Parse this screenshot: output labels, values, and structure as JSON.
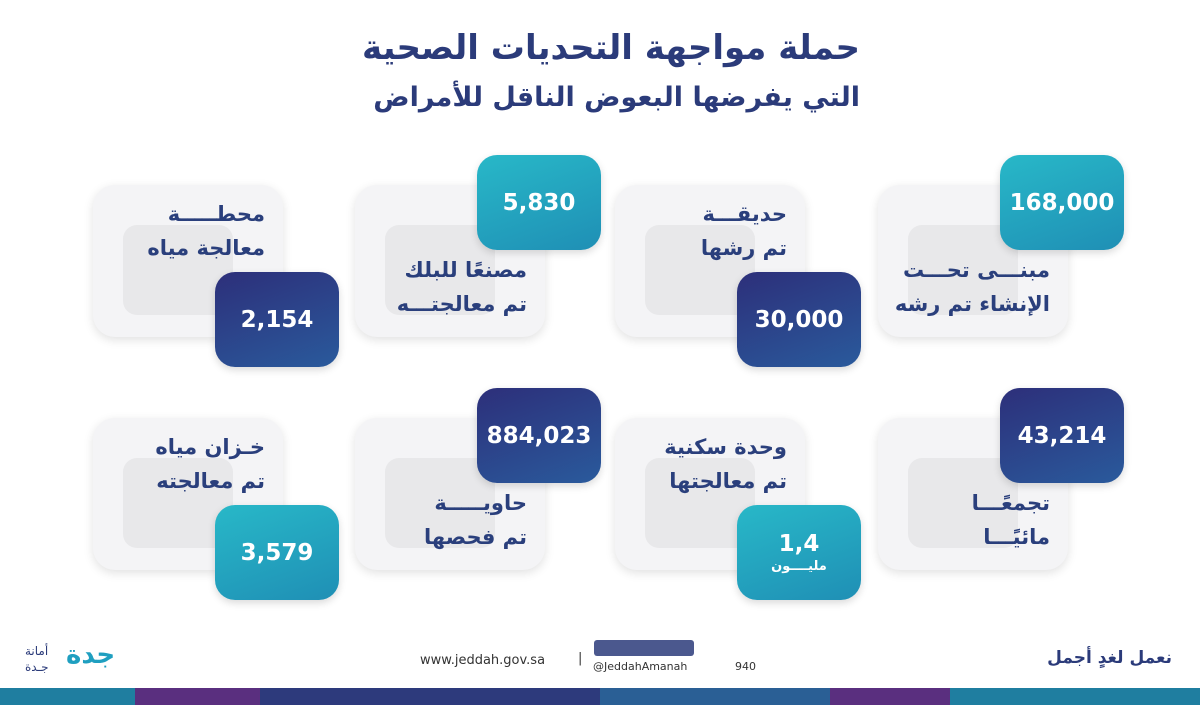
{
  "header": {
    "title": "حملة مواجهة التحديات الصحية",
    "subtitle": "التي يفرضها البعوض الناقل للأمراض"
  },
  "cards": [
    {
      "value": "168,000",
      "lines": [
        "مبنـــى تحـــت",
        "الإنشاء تم رشه"
      ]
    },
    {
      "value": "30,000",
      "lines": [
        "حديقـــة",
        "تم رشها"
      ]
    },
    {
      "value": "5,830",
      "lines": [
        "مصنعًا للبلك",
        "تم معالجتـــه"
      ]
    },
    {
      "value": "2,154",
      "lines": [
        "محطـــــة",
        "معالجة مياه"
      ]
    },
    {
      "value": "43,214",
      "lines": [
        "تجمعًـــا",
        "مائيًـــا"
      ]
    },
    {
      "value": "1,4",
      "unit": "مليــــون",
      "lines": [
        "وحدة سكنية",
        "تم معالجتها"
      ]
    },
    {
      "value": "884,023",
      "lines": [
        "حاويـــــة",
        "تم فحصها"
      ]
    },
    {
      "value": "3,579",
      "lines": [
        "خـزان مياه",
        "تم معالجته"
      ]
    }
  ],
  "footer": {
    "website": "www.jeddah.gov.sa",
    "separator": "|",
    "handle": "@JeddahAmanah",
    "phone": "940",
    "slogan": "نعمل لغدٍ أجمل",
    "logo_top": "أمانة",
    "logo_bottom": "جـدة",
    "logo_mark": "جدة"
  }
}
